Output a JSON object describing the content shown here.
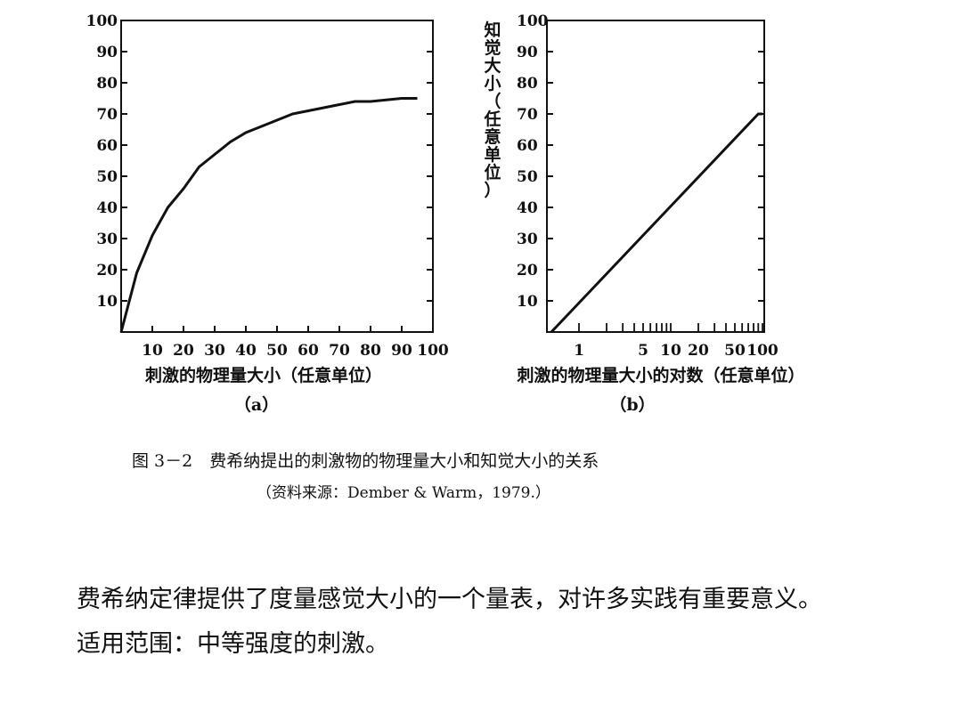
{
  "chart_data": [
    {
      "type": "line",
      "panel_label": "（a）",
      "xlabel": "刺激的物理量大小（任意单位）",
      "ylabel": "",
      "x_ticks": [
        "10",
        "20",
        "30",
        "40",
        "50",
        "60",
        "70",
        "80",
        "90",
        "100"
      ],
      "y_ticks": [
        "10",
        "20",
        "30",
        "40",
        "50",
        "60",
        "70",
        "80",
        "90",
        "100"
      ],
      "xlim": [
        0,
        100
      ],
      "ylim": [
        0,
        100
      ],
      "grid": false,
      "series": [
        {
          "x": [
            0,
            5,
            10,
            15,
            20,
            25,
            30,
            35,
            40,
            45,
            50,
            55,
            60,
            65,
            70,
            75,
            80,
            85,
            90,
            95
          ],
          "y": [
            0,
            19,
            31,
            40,
            46,
            53,
            57,
            61,
            64,
            66,
            68,
            70,
            71,
            72,
            73,
            74,
            74,
            74.5,
            75,
            75
          ]
        }
      ]
    },
    {
      "type": "line",
      "panel_label": "（b）",
      "xlabel": "刺激的物理量大小的对数（任意单位）",
      "ylabel": "知觉大小（任意单位）",
      "x_scale": "log",
      "x_ticks": [
        "1",
        "5",
        "10",
        "20",
        "50",
        "100"
      ],
      "y_ticks": [
        "10",
        "20",
        "30",
        "40",
        "50",
        "60",
        "70",
        "80",
        "90",
        "100"
      ],
      "ylim": [
        0,
        100
      ],
      "grid": false,
      "series": [
        {
          "x": [
            0.5,
            90,
            100
          ],
          "y": [
            0,
            70,
            70
          ]
        }
      ]
    }
  ],
  "caption": {
    "title": "图 3－2　费希纳提出的刺激物的物理量大小和知觉大小的关系",
    "source": "（资料来源：Dember & Warm，1979.）"
  },
  "body_text": [
    "费希纳定律提供了度量感觉大小的一个量表，对许多实践有重要意义。",
    "适用范围：中等强度的刺激。"
  ]
}
